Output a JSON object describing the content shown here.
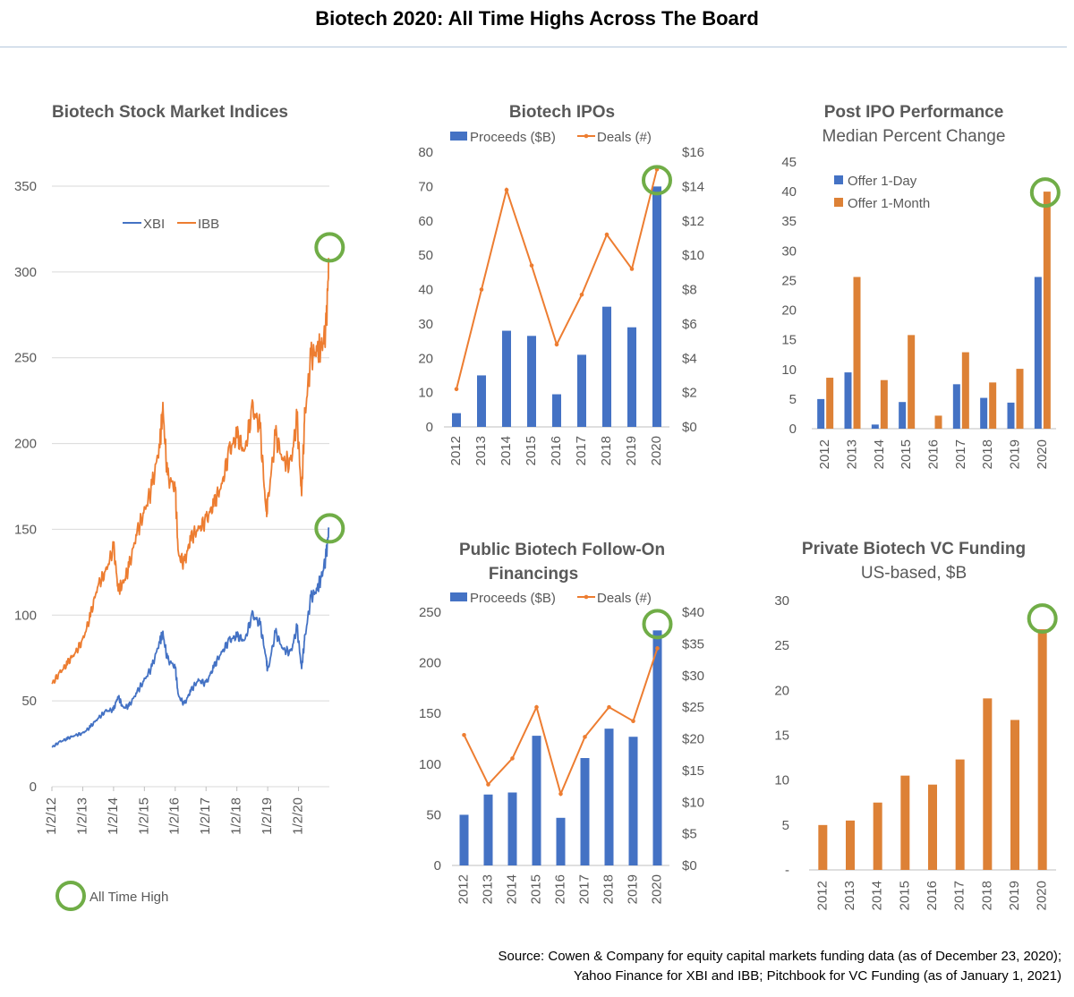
{
  "title": "Biotech 2020: All Time Highs Across The Board",
  "source_lines": [
    "Source: Cowen & Company for equity capital markets funding data (as of December 23, 2020);",
    "Yahoo Finance for XBI and IBB; Pitchbook for VC Funding (as of January 1, 2021)"
  ],
  "ath_legend": "All Time High",
  "colors": {
    "blue": "#4472c4",
    "orange": "#ed7d31",
    "bar_orange": "#dd8136",
    "green": "#70ad47",
    "grid": "#d9d9d9",
    "text": "#595959"
  },
  "chart_data": [
    {
      "id": "indices",
      "type": "line",
      "title": "Biotech Stock Market Indices",
      "ylim": [
        0,
        350
      ],
      "yticks": [
        0,
        50,
        100,
        150,
        200,
        250,
        300,
        350
      ],
      "xticks": [
        "1/2/12",
        "1/2/13",
        "1/2/14",
        "1/2/15",
        "1/2/16",
        "1/2/17",
        "1/2/18",
        "1/2/19",
        "1/2/20"
      ],
      "xlim": [
        2012.0,
        2021.0
      ],
      "series": [
        {
          "name": "XBI",
          "color": "blue",
          "x": [
            2012.0,
            2012.25,
            2012.5,
            2012.75,
            2013.0,
            2013.25,
            2013.5,
            2013.75,
            2014.0,
            2014.15,
            2014.3,
            2014.5,
            2014.75,
            2015.0,
            2015.25,
            2015.5,
            2015.6,
            2015.75,
            2016.0,
            2016.1,
            2016.3,
            2016.5,
            2016.75,
            2017.0,
            2017.25,
            2017.5,
            2017.75,
            2018.0,
            2018.25,
            2018.5,
            2018.75,
            2018.95,
            2019.0,
            2019.25,
            2019.5,
            2019.75,
            2019.95,
            2020.1,
            2020.2,
            2020.4,
            2020.6,
            2020.75,
            2020.9,
            2020.98
          ],
          "y": [
            23,
            26,
            28,
            30,
            31,
            35,
            40,
            44,
            45,
            53,
            46,
            47,
            55,
            62,
            70,
            85,
            89,
            74,
            70,
            53,
            48,
            56,
            62,
            60,
            70,
            78,
            85,
            88,
            85,
            100,
            95,
            75,
            67,
            90,
            80,
            78,
            93,
            69,
            86,
            110,
            115,
            122,
            135,
            150
          ]
        },
        {
          "name": "IBB",
          "color": "orange",
          "x": [
            2012.0,
            2012.25,
            2012.5,
            2012.75,
            2013.0,
            2013.25,
            2013.5,
            2013.75,
            2014.0,
            2014.15,
            2014.3,
            2014.5,
            2014.75,
            2015.0,
            2015.25,
            2015.5,
            2015.6,
            2015.75,
            2016.0,
            2016.1,
            2016.3,
            2016.5,
            2016.75,
            2017.0,
            2017.25,
            2017.5,
            2017.75,
            2018.0,
            2018.25,
            2018.5,
            2018.75,
            2018.95,
            2019.0,
            2019.25,
            2019.5,
            2019.75,
            2019.95,
            2020.1,
            2020.2,
            2020.4,
            2020.6,
            2020.75,
            2020.9,
            2020.98
          ],
          "y": [
            60,
            66,
            72,
            78,
            85,
            100,
            118,
            125,
            140,
            115,
            118,
            128,
            148,
            160,
            175,
            200,
            220,
            180,
            175,
            135,
            130,
            145,
            150,
            155,
            165,
            175,
            195,
            205,
            195,
            220,
            210,
            160,
            165,
            205,
            190,
            188,
            215,
            170,
            215,
            250,
            255,
            255,
            268,
            307
          ]
        }
      ],
      "legend": [
        "XBI",
        "IBB"
      ]
    },
    {
      "id": "ipos",
      "type": "bar+line",
      "title": "Biotech IPOs",
      "categories": [
        "2012",
        "2013",
        "2014",
        "2015",
        "2016",
        "2017",
        "2018",
        "2019",
        "2020"
      ],
      "bar_series": {
        "name": "Proceeds ($B)",
        "values": [
          4,
          15,
          28,
          26.5,
          9.5,
          21,
          35,
          29,
          70
        ]
      },
      "line_series": {
        "name": "Deals (#)",
        "values": [
          2.2,
          8,
          13.8,
          9.4,
          4.8,
          7.7,
          11.2,
          9.2,
          15
        ]
      },
      "left_ylim": [
        0,
        80
      ],
      "left_ticks": [
        "0",
        "10",
        "20",
        "30",
        "40",
        "50",
        "60",
        "70",
        "80"
      ],
      "right_ylim": [
        0,
        16
      ],
      "right_ticks": [
        "$0",
        "$2",
        "$4",
        "$6",
        "$8",
        "$10",
        "$12",
        "$14",
        "$16"
      ]
    },
    {
      "id": "post_ipo",
      "type": "bar",
      "title": "Post IPO Performance",
      "subtitle": "Median Percent Change",
      "categories": [
        "2012",
        "2013",
        "2014",
        "2015",
        "2016",
        "2017",
        "2018",
        "2019",
        "2020"
      ],
      "series": [
        {
          "name": "Offer 1-Day",
          "color": "blue",
          "values": [
            5,
            9.5,
            0.7,
            4.5,
            0,
            7.5,
            5.2,
            4.4,
            25.6
          ]
        },
        {
          "name": "Offer 1-Month",
          "color": "bar_orange",
          "values": [
            8.6,
            25.6,
            8.2,
            15.8,
            2.2,
            12.9,
            7.8,
            10.1,
            40
          ]
        }
      ],
      "ylim": [
        0,
        45
      ],
      "yticks": [
        "0",
        "5",
        "10",
        "15",
        "20",
        "25",
        "30",
        "35",
        "40",
        "45"
      ]
    },
    {
      "id": "follow_on",
      "type": "bar+line",
      "title_lines": [
        "Public Biotech Follow-On",
        "Financings"
      ],
      "categories": [
        "2012",
        "2013",
        "2014",
        "2015",
        "2016",
        "2017",
        "2018",
        "2019",
        "2020"
      ],
      "bar_series": {
        "name": "Proceeds ($B)",
        "values": [
          50,
          70,
          72,
          128,
          47,
          106,
          135,
          127,
          232
        ]
      },
      "line_series": {
        "name": "Deals (#)",
        "values": [
          20.6,
          12.8,
          16.9,
          25,
          11.3,
          20.3,
          25,
          22.8,
          34.3
        ]
      },
      "left_ylim": [
        0,
        250
      ],
      "left_ticks": [
        "0",
        "50",
        "100",
        "150",
        "200",
        "250"
      ],
      "right_ylim": [
        0,
        40
      ],
      "right_ticks": [
        "$0",
        "$5",
        "$10",
        "$15",
        "$20",
        "$25",
        "$30",
        "$35",
        "$40"
      ]
    },
    {
      "id": "vc",
      "type": "bar",
      "title": "Private Biotech VC Funding",
      "subtitle": "US-based, $B",
      "categories": [
        "2012",
        "2013",
        "2014",
        "2015",
        "2016",
        "2017",
        "2018",
        "2019",
        "2020"
      ],
      "series": [
        {
          "name": "VC Funding",
          "color": "bar_orange",
          "values": [
            5,
            5.5,
            7.5,
            10.5,
            9.5,
            12.3,
            19.1,
            16.7,
            26.8
          ]
        }
      ],
      "ylim": [
        0,
        30
      ],
      "yticks": [
        "-",
        "5",
        "10",
        "15",
        "20",
        "25",
        "30"
      ]
    }
  ]
}
